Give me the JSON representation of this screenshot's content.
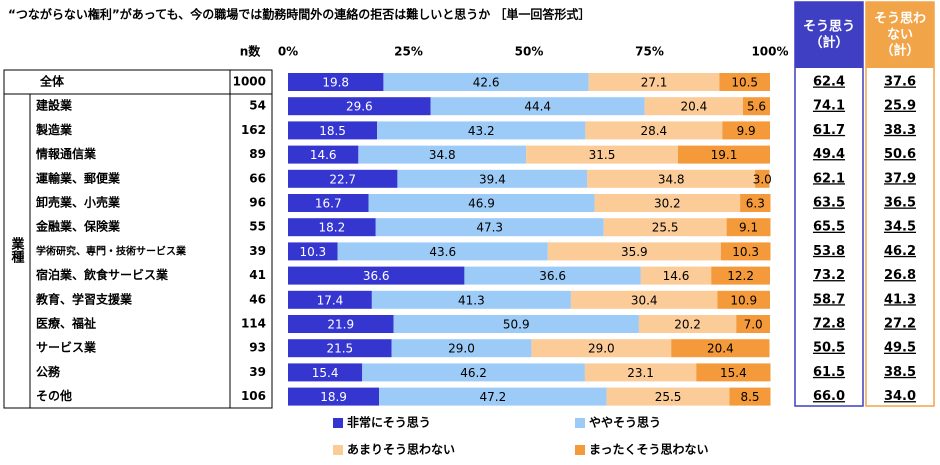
{
  "chart_data": {
    "type": "bar",
    "orientation": "horizontal",
    "stacked": true,
    "title": "“つながらない権利”があっても、今の職場では勤務時間外の連絡の拒否は難しいと思うか ［単一回答形式］",
    "n_header": "n数",
    "side_label": "業種",
    "categories": [
      "全体",
      "建設業",
      "製造業",
      "情報通信業",
      "運輸業、郵便業",
      "卸売業、小売業",
      "金融業、保険業",
      "学術研究、専門・技術サービス業",
      "宿泊業、飲食サービス業",
      "教育、学習支援業",
      "医療、福祉",
      "サービス業",
      "公務",
      "その他"
    ],
    "n_values": [
      1000,
      54,
      162,
      89,
      66,
      96,
      55,
      39,
      41,
      46,
      114,
      93,
      39,
      106
    ],
    "xlim": [
      0,
      100
    ],
    "xticks": [
      {
        "value": 0,
        "label": "0%"
      },
      {
        "value": 25,
        "label": "25%"
      },
      {
        "value": 50,
        "label": "50%"
      },
      {
        "value": 75,
        "label": "75%"
      },
      {
        "value": 100,
        "label": "100%"
      }
    ],
    "series": [
      {
        "name": "非常にそう思う",
        "color": "#3535d0",
        "label_color": "#ffffff",
        "values": [
          19.8,
          29.6,
          18.5,
          14.6,
          22.7,
          16.7,
          18.2,
          10.3,
          36.6,
          17.4,
          21.9,
          21.5,
          15.4,
          18.9
        ],
        "value_labels": [
          "19.8",
          "29.6",
          "18.5",
          "14.6",
          "22.7",
          "16.7",
          "18.2",
          "10.3",
          "36.6",
          "17.4",
          "21.9",
          "21.5",
          "15.4",
          "18.9"
        ]
      },
      {
        "name": "ややそう思う",
        "color": "#9dcbf7",
        "label_color": "#000000",
        "values": [
          42.6,
          44.4,
          43.2,
          34.8,
          39.4,
          46.9,
          47.3,
          43.6,
          36.6,
          41.3,
          50.9,
          29.0,
          46.2,
          47.2
        ],
        "value_labels": [
          "42.6",
          "44.4",
          "43.2",
          "34.8",
          "39.4",
          "46.9",
          "47.3",
          "43.6",
          "36.6",
          "41.3",
          "50.9",
          "29.0",
          "46.2",
          "47.2"
        ]
      },
      {
        "name": "あまりそう思わない",
        "color": "#fbcb98",
        "label_color": "#000000",
        "values": [
          27.1,
          20.4,
          28.4,
          31.5,
          34.8,
          30.2,
          25.5,
          35.9,
          14.6,
          30.4,
          20.2,
          29.0,
          23.1,
          25.5
        ],
        "value_labels": [
          "27.1",
          "20.4",
          "28.4",
          "31.5",
          "34.8",
          "30.2",
          "25.5",
          "35.9",
          "14.6",
          "30.4",
          "20.2",
          "29.0",
          "23.1",
          "25.5"
        ]
      },
      {
        "name": "まったくそう思わない",
        "color": "#f59a3a",
        "label_color": "#000000",
        "values": [
          10.5,
          5.6,
          9.9,
          19.1,
          3.0,
          6.3,
          9.1,
          10.3,
          12.2,
          10.9,
          7.0,
          20.4,
          15.4,
          8.5
        ],
        "value_labels": [
          "10.5",
          "5.6",
          "9.9",
          "19.1",
          "3.0",
          "6.3",
          "9.1",
          "10.3",
          "12.2",
          "10.9",
          "7.0",
          "20.4",
          "15.4",
          "8.5"
        ]
      }
    ],
    "summary_columns": [
      {
        "header_lines": [
          "そう思う",
          "（計）"
        ],
        "color": "#3f3fc4",
        "values": [
          62.4,
          74.1,
          61.7,
          49.4,
          62.1,
          63.5,
          65.5,
          53.8,
          73.2,
          58.7,
          72.8,
          50.5,
          61.5,
          66.0
        ],
        "value_labels": [
          "62.4",
          "74.1",
          "61.7",
          "49.4",
          "62.1",
          "63.5",
          "65.5",
          "53.8",
          "73.2",
          "58.7",
          "72.8",
          "50.5",
          "61.5",
          "66.0"
        ]
      },
      {
        "header_lines": [
          "そう思わ",
          "ない",
          "（計）"
        ],
        "color": "#f2a448",
        "values": [
          37.6,
          25.9,
          38.3,
          50.6,
          37.9,
          36.5,
          34.5,
          46.2,
          26.8,
          41.3,
          27.2,
          49.5,
          38.5,
          34.0
        ],
        "value_labels": [
          "37.6",
          "25.9",
          "38.3",
          "50.6",
          "37.9",
          "36.5",
          "34.5",
          "46.2",
          "26.8",
          "41.3",
          "27.2",
          "49.5",
          "38.5",
          "34.0"
        ]
      }
    ]
  }
}
